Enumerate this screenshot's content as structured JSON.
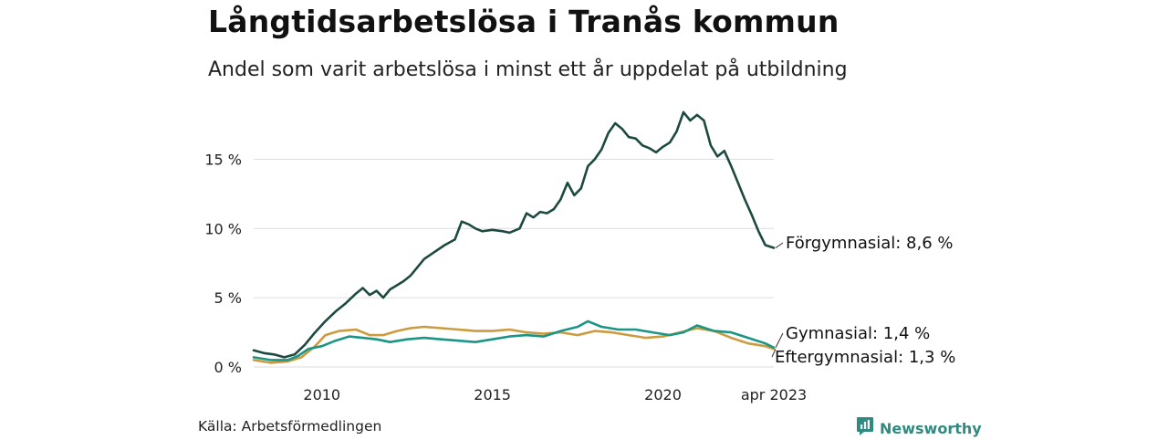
{
  "header": {
    "title": "Långtidsarbetslösa i Tranås kommun",
    "subtitle": "Andel som varit arbetslösa i minst ett år uppdelat på utbildning"
  },
  "footer": {
    "source": "Källa: Arbetsförmedlingen",
    "brand": "Newsworthy",
    "brand_icon": "newsworthy-logo-icon"
  },
  "colors": {
    "forgymnasial": "#1d4a40",
    "gymnasial": "#1b9585",
    "eftergymnasial": "#cc9a3f",
    "grid": "#dddddd",
    "brand": "#2f8a80"
  },
  "chart_data": {
    "type": "line",
    "title": "Långtidsarbetslösa i Tranås kommun",
    "subtitle": "Andel som varit arbetslösa i minst ett år uppdelat på utbildning",
    "x_range": [
      2008.0,
      2023.25
    ],
    "x_ticks": [
      {
        "value": 2010,
        "label": "2010"
      },
      {
        "value": 2015,
        "label": "2015"
      },
      {
        "value": 2020,
        "label": "2020"
      },
      {
        "value": 2023.25,
        "label": "apr 2023"
      }
    ],
    "ylim": [
      0,
      18.5
    ],
    "y_ticks": [
      {
        "value": 0,
        "label": "0 %"
      },
      {
        "value": 5,
        "label": "5 %"
      },
      {
        "value": 10,
        "label": "10 %"
      },
      {
        "value": 15,
        "label": "15 %"
      }
    ],
    "grid": "horizontal",
    "legend": "end-of-line labels",
    "series": [
      {
        "name": "Förgymnasial",
        "end_label": "Förgymnasial: 8,6 %",
        "color": "#1d4a40",
        "points": [
          [
            2008.0,
            1.2
          ],
          [
            2008.3,
            1.0
          ],
          [
            2008.6,
            0.9
          ],
          [
            2008.9,
            0.7
          ],
          [
            2009.2,
            0.9
          ],
          [
            2009.5,
            1.6
          ],
          [
            2009.8,
            2.5
          ],
          [
            2010.1,
            3.3
          ],
          [
            2010.4,
            4.0
          ],
          [
            2010.7,
            4.6
          ],
          [
            2011.0,
            5.3
          ],
          [
            2011.2,
            5.7
          ],
          [
            2011.4,
            5.2
          ],
          [
            2011.6,
            5.5
          ],
          [
            2011.8,
            5.0
          ],
          [
            2012.0,
            5.6
          ],
          [
            2012.2,
            5.9
          ],
          [
            2012.4,
            6.2
          ],
          [
            2012.6,
            6.6
          ],
          [
            2012.8,
            7.2
          ],
          [
            2013.0,
            7.8
          ],
          [
            2013.3,
            8.3
          ],
          [
            2013.6,
            8.8
          ],
          [
            2013.9,
            9.2
          ],
          [
            2014.1,
            10.5
          ],
          [
            2014.3,
            10.3
          ],
          [
            2014.5,
            10.0
          ],
          [
            2014.7,
            9.8
          ],
          [
            2015.0,
            9.9
          ],
          [
            2015.3,
            9.8
          ],
          [
            2015.5,
            9.7
          ],
          [
            2015.8,
            10.0
          ],
          [
            2016.0,
            11.1
          ],
          [
            2016.2,
            10.8
          ],
          [
            2016.4,
            11.2
          ],
          [
            2016.6,
            11.1
          ],
          [
            2016.8,
            11.4
          ],
          [
            2017.0,
            12.1
          ],
          [
            2017.2,
            13.3
          ],
          [
            2017.4,
            12.4
          ],
          [
            2017.6,
            12.9
          ],
          [
            2017.8,
            14.5
          ],
          [
            2018.0,
            15.0
          ],
          [
            2018.2,
            15.7
          ],
          [
            2018.4,
            16.9
          ],
          [
            2018.6,
            17.6
          ],
          [
            2018.8,
            17.2
          ],
          [
            2019.0,
            16.6
          ],
          [
            2019.2,
            16.5
          ],
          [
            2019.4,
            16.0
          ],
          [
            2019.6,
            15.8
          ],
          [
            2019.8,
            15.5
          ],
          [
            2020.0,
            15.9
          ],
          [
            2020.2,
            16.2
          ],
          [
            2020.4,
            17.0
          ],
          [
            2020.6,
            18.4
          ],
          [
            2020.8,
            17.8
          ],
          [
            2021.0,
            18.2
          ],
          [
            2021.2,
            17.8
          ],
          [
            2021.4,
            16.0
          ],
          [
            2021.6,
            15.2
          ],
          [
            2021.8,
            15.6
          ],
          [
            2022.0,
            14.5
          ],
          [
            2022.2,
            13.3
          ],
          [
            2022.4,
            12.1
          ],
          [
            2022.6,
            11.0
          ],
          [
            2022.8,
            9.8
          ],
          [
            2023.0,
            8.8
          ],
          [
            2023.25,
            8.6
          ]
        ]
      },
      {
        "name": "Gymnasial",
        "end_label": "Gymnasial: 1,4 %",
        "color": "#1b9585",
        "points": [
          [
            2008.0,
            0.7
          ],
          [
            2008.5,
            0.5
          ],
          [
            2009.0,
            0.5
          ],
          [
            2009.3,
            0.8
          ],
          [
            2009.6,
            1.3
          ],
          [
            2010.0,
            1.5
          ],
          [
            2010.4,
            1.9
          ],
          [
            2010.8,
            2.2
          ],
          [
            2011.2,
            2.1
          ],
          [
            2011.6,
            2.0
          ],
          [
            2012.0,
            1.8
          ],
          [
            2012.5,
            2.0
          ],
          [
            2013.0,
            2.1
          ],
          [
            2013.5,
            2.0
          ],
          [
            2014.0,
            1.9
          ],
          [
            2014.5,
            1.8
          ],
          [
            2015.0,
            2.0
          ],
          [
            2015.5,
            2.2
          ],
          [
            2016.0,
            2.3
          ],
          [
            2016.5,
            2.2
          ],
          [
            2017.0,
            2.6
          ],
          [
            2017.5,
            2.9
          ],
          [
            2017.8,
            3.3
          ],
          [
            2018.2,
            2.9
          ],
          [
            2018.7,
            2.7
          ],
          [
            2019.2,
            2.7
          ],
          [
            2019.7,
            2.5
          ],
          [
            2020.2,
            2.3
          ],
          [
            2020.6,
            2.5
          ],
          [
            2021.0,
            3.0
          ],
          [
            2021.5,
            2.6
          ],
          [
            2022.0,
            2.5
          ],
          [
            2022.5,
            2.1
          ],
          [
            2023.0,
            1.7
          ],
          [
            2023.25,
            1.4
          ]
        ]
      },
      {
        "name": "Eftergymnasial",
        "end_label": "Eftergymnasial: 1,3 %",
        "color": "#cc9a3f",
        "points": [
          [
            2008.0,
            0.5
          ],
          [
            2008.5,
            0.3
          ],
          [
            2009.0,
            0.4
          ],
          [
            2009.4,
            0.7
          ],
          [
            2009.8,
            1.5
          ],
          [
            2010.1,
            2.3
          ],
          [
            2010.5,
            2.6
          ],
          [
            2011.0,
            2.7
          ],
          [
            2011.4,
            2.3
          ],
          [
            2011.8,
            2.3
          ],
          [
            2012.2,
            2.6
          ],
          [
            2012.6,
            2.8
          ],
          [
            2013.0,
            2.9
          ],
          [
            2013.5,
            2.8
          ],
          [
            2014.0,
            2.7
          ],
          [
            2014.5,
            2.6
          ],
          [
            2015.0,
            2.6
          ],
          [
            2015.5,
            2.7
          ],
          [
            2016.0,
            2.5
          ],
          [
            2016.5,
            2.4
          ],
          [
            2017.0,
            2.5
          ],
          [
            2017.5,
            2.3
          ],
          [
            2018.0,
            2.6
          ],
          [
            2018.5,
            2.5
          ],
          [
            2019.0,
            2.3
          ],
          [
            2019.5,
            2.1
          ],
          [
            2020.0,
            2.2
          ],
          [
            2020.5,
            2.5
          ],
          [
            2021.0,
            2.8
          ],
          [
            2021.5,
            2.6
          ],
          [
            2022.0,
            2.1
          ],
          [
            2022.5,
            1.7
          ],
          [
            2023.0,
            1.5
          ],
          [
            2023.25,
            1.3
          ]
        ]
      }
    ]
  }
}
